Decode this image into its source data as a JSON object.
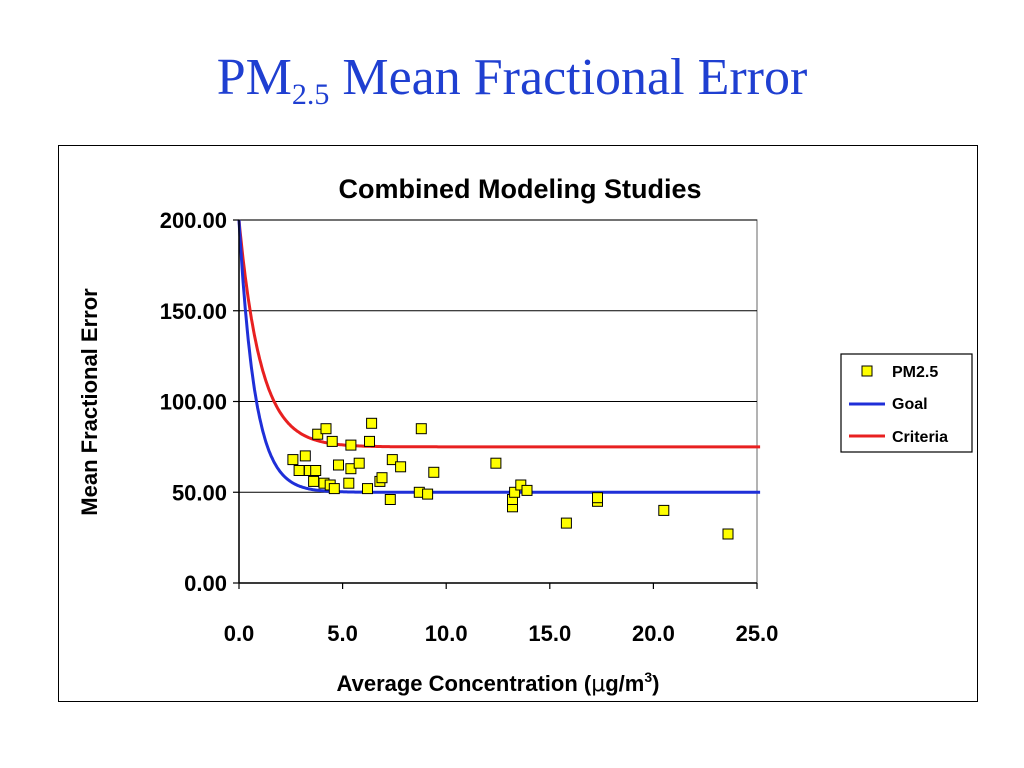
{
  "slide": {
    "title_main": "PM",
    "title_sub": "2.5",
    "title_rest": " Mean Fractional Error"
  },
  "chart_data": {
    "type": "scatter",
    "title": "Combined Modeling Studies",
    "xlabel_prefix": "Average Concentration (",
    "xlabel_mu": "μ",
    "xlabel_unit": "g/m",
    "xlabel_sup": "3",
    "xlabel_suffix": ")",
    "ylabel": "Mean Fractional Error",
    "xlim": [
      0,
      25
    ],
    "ylim": [
      0,
      200
    ],
    "xticks": [
      "0.0",
      "5.0",
      "10.0",
      "15.0",
      "20.0",
      "25.0"
    ],
    "yticks": [
      "0.00",
      "50.00",
      "100.00",
      "150.00",
      "200.00"
    ],
    "grid": "horizontal",
    "legend_position": "right",
    "legend": [
      "PM2.5",
      "Goal",
      "Criteria"
    ],
    "colors": {
      "points": "#ffff00",
      "goal": "#1f2fd8",
      "criteria": "#e82020"
    },
    "goal_curve": {
      "asymptote": 50,
      "start": 200
    },
    "criteria_curve": {
      "asymptote": 75,
      "start": 200
    },
    "points": [
      [
        2.6,
        68
      ],
      [
        2.9,
        62
      ],
      [
        3.2,
        70
      ],
      [
        3.4,
        62
      ],
      [
        3.6,
        56
      ],
      [
        3.7,
        62
      ],
      [
        3.8,
        82
      ],
      [
        4.1,
        55
      ],
      [
        4.2,
        85
      ],
      [
        4.4,
        54
      ],
      [
        4.5,
        78
      ],
      [
        4.6,
        52
      ],
      [
        4.8,
        65
      ],
      [
        5.3,
        55
      ],
      [
        5.4,
        76
      ],
      [
        5.4,
        63
      ],
      [
        5.8,
        66
      ],
      [
        6.2,
        52
      ],
      [
        6.3,
        78
      ],
      [
        6.4,
        88
      ],
      [
        6.8,
        56
      ],
      [
        6.9,
        58
      ],
      [
        7.3,
        46
      ],
      [
        7.4,
        68
      ],
      [
        7.8,
        64
      ],
      [
        8.7,
        50
      ],
      [
        8.8,
        85
      ],
      [
        9.1,
        49
      ],
      [
        9.4,
        61
      ],
      [
        12.4,
        66
      ],
      [
        13.2,
        42
      ],
      [
        13.2,
        46
      ],
      [
        13.3,
        50
      ],
      [
        13.6,
        54
      ],
      [
        13.9,
        51
      ],
      [
        15.8,
        33
      ],
      [
        17.3,
        45
      ],
      [
        17.3,
        47
      ],
      [
        20.5,
        40
      ],
      [
        23.6,
        27
      ]
    ]
  }
}
